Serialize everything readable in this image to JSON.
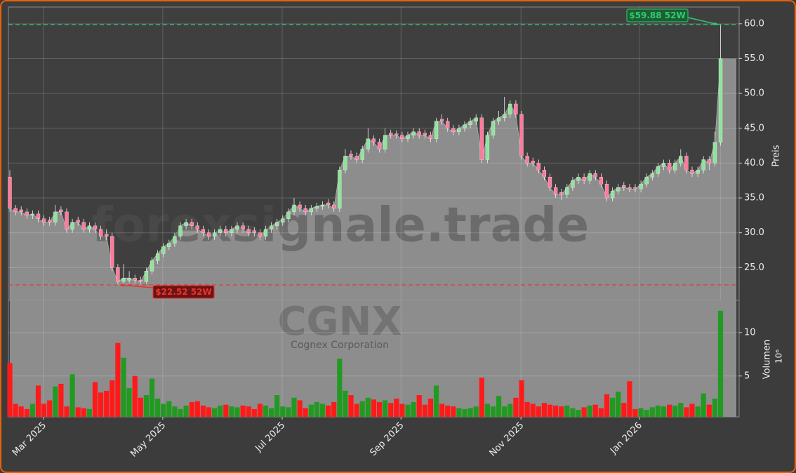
{
  "chart_data": {
    "type": "candlestick",
    "watermark": "forexsignale.trade",
    "symbol": "CGNX",
    "company": "Cognex Corporation",
    "ylabel": "Preis",
    "volume_ylabel": "Volumen",
    "volume_unit": "10⁶",
    "ylim": [
      20.3,
      62.4
    ],
    "yticks": [
      {
        "value": 25,
        "label": "25.0"
      },
      {
        "value": 30,
        "label": "30.0"
      },
      {
        "value": 35,
        "label": "35.0"
      },
      {
        "value": 40,
        "label": "40.0"
      },
      {
        "value": 45,
        "label": "45.0"
      },
      {
        "value": 50,
        "label": "50.0"
      },
      {
        "value": 55,
        "label": "55.0"
      },
      {
        "value": 60,
        "label": "60.0"
      }
    ],
    "volume_ylim": [
      0.3,
      13.7
    ],
    "volume_yticks": [
      5,
      10
    ],
    "xticks": [
      {
        "value": 5.9,
        "label": "Mar 2025"
      },
      {
        "value": 26.9,
        "label": "May 2025"
      },
      {
        "value": 47.9,
        "label": "Jul 2025"
      },
      {
        "value": 68.8,
        "label": "Sep 2025"
      },
      {
        "value": 89.9,
        "label": "Nov 2025"
      },
      {
        "value": 110.7,
        "label": "Jan 2026"
      }
    ],
    "grid": true,
    "area_color": "#8d8d8d",
    "candle_up_color": "#8fe39a",
    "candle_down_color": "#ff7a9c",
    "volume_up_color": "#229a22",
    "volume_down_color": "#ff1a1a",
    "annotations": [
      {
        "label": "$59.88 52W",
        "value": 59.88,
        "color": "#2ecc71"
      },
      {
        "label": "$22.52 52W",
        "value": 22.52,
        "color": "#e8352e"
      }
    ],
    "open": [
      38,
      33.5,
      33.3,
      33,
      32.5,
      32.7,
      32,
      31.8,
      31.5,
      33.3,
      33,
      30.5,
      31.8,
      31.5,
      30.5,
      31,
      30.5,
      29.8,
      29.5,
      25,
      23,
      23.2,
      23.5,
      23.2,
      23,
      24.5,
      26,
      27,
      28,
      28.5,
      29.5,
      31,
      31.5,
      31,
      30.5,
      30,
      29.5,
      30,
      30.5,
      30,
      30.5,
      31,
      30.5,
      30.3,
      30,
      29.5,
      30.5,
      31,
      31.5,
      32,
      33,
      34,
      33.5,
      33,
      33.5,
      33.8,
      34.3,
      34,
      33.5,
      39,
      41.3,
      41,
      40.5,
      42,
      43.5,
      43,
      42,
      44.3,
      44.2,
      44,
      43.5,
      44,
      44.5,
      44.3,
      44,
      43.5,
      46.3,
      46,
      45,
      44.5,
      45,
      45.5,
      46,
      46.5,
      40.5,
      44,
      46,
      46.5,
      47,
      48.5,
      47,
      41,
      40.3,
      40,
      39,
      38,
      36.5,
      35.8,
      35.5,
      36.5,
      37.5,
      38,
      37.5,
      38.5,
      38,
      37,
      35,
      36,
      36.8,
      36.5,
      36.5,
      36.3,
      37,
      38,
      38.5,
      39.5,
      40,
      39,
      40,
      41,
      39,
      38.5,
      39,
      40.5,
      40,
      43
    ],
    "high": [
      39,
      34,
      33.8,
      33.5,
      33.2,
      33.2,
      32.5,
      32.3,
      34,
      33.8,
      33.5,
      32,
      32.3,
      32,
      31.5,
      31.5,
      31,
      30.5,
      30,
      25.5,
      25.5,
      24.5,
      24,
      23.7,
      25,
      26.5,
      27.5,
      28.5,
      29,
      30,
      31.5,
      32,
      32,
      31.5,
      31,
      30.5,
      30.5,
      31,
      31,
      31,
      31.5,
      31.5,
      31,
      30.8,
      30.5,
      31,
      31.5,
      32,
      32.5,
      33.5,
      35,
      34.5,
      34,
      34,
      34.3,
      34.5,
      34.8,
      34.5,
      39.5,
      42,
      41.8,
      41.5,
      42.5,
      45,
      44,
      43.5,
      45,
      44.8,
      44.7,
      44.5,
      44.5,
      45,
      45,
      44.8,
      44.5,
      46.5,
      47,
      46.5,
      45.5,
      45.5,
      46,
      46.5,
      47,
      47,
      44.5,
      46.5,
      47.5,
      49.5,
      49,
      49,
      47.5,
      41.5,
      40.8,
      40.5,
      39.5,
      38.5,
      37,
      36.3,
      37,
      38,
      38.5,
      38.5,
      39,
      39,
      38.5,
      37.5,
      36.5,
      37,
      37.3,
      37,
      37,
      37.5,
      38.5,
      39,
      40,
      40.5,
      40.5,
      40.5,
      42,
      41.5,
      39.5,
      39.5,
      41,
      41,
      44.5,
      59.88
    ],
    "low": [
      33,
      32.5,
      32.5,
      32,
      32,
      31.5,
      31,
      31,
      31,
      32.5,
      30,
      30,
      31,
      30,
      30,
      30,
      29,
      29,
      24.5,
      22.52,
      22.6,
      22.8,
      22.7,
      22.6,
      22.7,
      24,
      25.5,
      26.5,
      27.5,
      28,
      29,
      30.5,
      30.5,
      30,
      29.5,
      29,
      29,
      29.5,
      29.5,
      29.5,
      30,
      30,
      29.5,
      29.5,
      29,
      29,
      30,
      30.5,
      31,
      31.5,
      32.5,
      33,
      32.5,
      32.5,
      33,
      33.3,
      33.5,
      33,
      33,
      38.5,
      40.5,
      40,
      40,
      41.5,
      42.5,
      41.5,
      41.5,
      43.5,
      43.5,
      43,
      43,
      43.5,
      43.5,
      43.5,
      43,
      43,
      45.5,
      44.5,
      44,
      44,
      44.5,
      45,
      45.5,
      40,
      40,
      43.5,
      45.5,
      46,
      46.5,
      46.5,
      40.5,
      39.5,
      39.5,
      38.5,
      37.5,
      36,
      35,
      34.7,
      35,
      36,
      37,
      37,
      37,
      37.5,
      36.5,
      34.5,
      34.5,
      35.5,
      36,
      35.8,
      35.8,
      35.8,
      36.5,
      37.5,
      38,
      39,
      38.5,
      38.5,
      39.5,
      38.5,
      38,
      38,
      38.5,
      39,
      39.5,
      42.5
    ],
    "close": [
      33.5,
      33,
      33,
      32.5,
      32.7,
      32,
      31.5,
      31.5,
      33,
      33,
      30.5,
      31.5,
      31.5,
      30.5,
      31,
      30.5,
      29.5,
      29.5,
      25,
      23,
      23.5,
      23.5,
      23.2,
      23,
      24.5,
      26,
      27,
      28,
      28.5,
      29.5,
      31,
      31.5,
      31,
      30.5,
      30,
      29.5,
      30,
      30.5,
      30,
      30.5,
      31,
      30.5,
      30,
      30,
      29.5,
      30.5,
      31,
      31.5,
      32,
      33,
      34,
      33.5,
      33,
      33.5,
      33.8,
      34,
      34,
      33.5,
      39,
      41,
      41,
      40.5,
      42,
      43.5,
      43,
      42,
      44,
      44,
      44,
      43.5,
      44,
      44.5,
      44,
      44,
      43.5,
      46,
      46,
      45,
      44.5,
      45,
      45.5,
      46,
      46.5,
      40.5,
      44,
      46,
      46.5,
      47,
      48.5,
      47,
      41,
      40,
      40,
      39,
      38,
      36.5,
      35.5,
      35.5,
      36.5,
      37.5,
      38,
      37.5,
      38.5,
      38,
      37,
      35,
      36,
      36.5,
      36.5,
      36.3,
      36.3,
      37,
      38,
      38.5,
      39.5,
      40,
      39,
      40,
      41,
      39,
      38.5,
      39,
      40.5,
      40,
      43,
      55
    ],
    "volume": [
      6.5,
      1.8,
      1.5,
      1.2,
      1.8,
      3.9,
      1.8,
      2.2,
      3.8,
      4.1,
      1.5,
      5.2,
      1.4,
      1.3,
      1.2,
      4.3,
      3.1,
      3.3,
      4.5,
      8.8,
      7.1,
      3.6,
      5.0,
      2.5,
      2.8,
      4.7,
      2.4,
      1.8,
      2.1,
      1.5,
      1.2,
      1.6,
      2.0,
      2.1,
      1.6,
      1.4,
      1.3,
      1.6,
      1.7,
      1.5,
      1.4,
      1.6,
      1.5,
      1.2,
      1.8,
      1.6,
      1.3,
      2.8,
      1.5,
      1.4,
      2.5,
      2.2,
      1.3,
      1.7,
      2.0,
      1.8,
      1.6,
      2.0,
      7.0,
      3.3,
      2.8,
      1.8,
      2.1,
      2.5,
      2.3,
      2.0,
      2.2,
      1.9,
      2.4,
      1.8,
      1.7,
      2.0,
      2.8,
      1.7,
      2.4,
      3.9,
      1.8,
      1.6,
      1.5,
      1.3,
      1.2,
      1.3,
      1.5,
      4.8,
      1.8,
      1.5,
      2.7,
      1.5,
      1.8,
      2.5,
      4.5,
      2.0,
      1.8,
      1.5,
      1.9,
      1.7,
      1.6,
      1.5,
      1.6,
      1.3,
      1.1,
      1.4,
      1.6,
      1.7,
      1.3,
      2.9,
      2.5,
      3.2,
      1.9,
      4.4,
      1.2,
      1.3,
      1.1,
      1.4,
      1.6,
      1.5,
      1.7,
      1.6,
      1.9,
      1.4,
      1.8,
      1.5,
      3.0,
      1.7,
      2.4,
      12.5
    ]
  }
}
